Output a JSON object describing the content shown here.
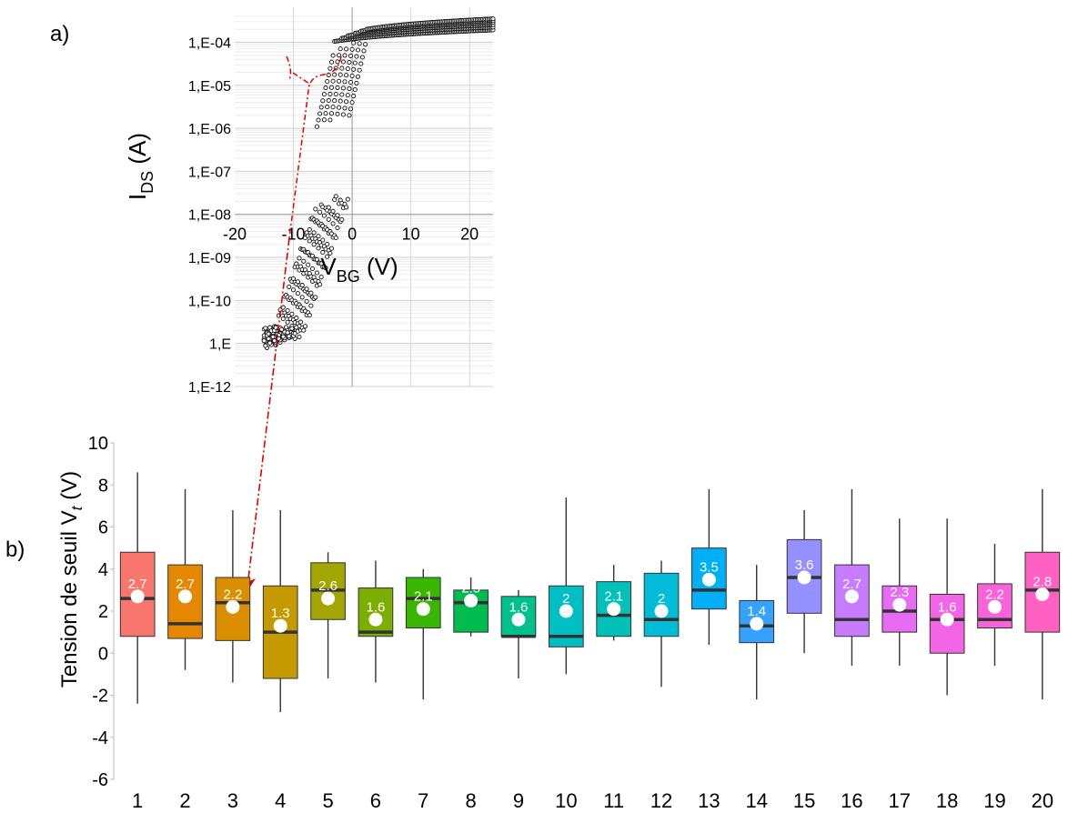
{
  "panel_labels": {
    "a": "a)",
    "b": "b)"
  },
  "chart_data": [
    {
      "type": "scatter",
      "panel": "a)",
      "ylabel_main": "I",
      "ylabel_sub": "DS",
      "ylabel_unit": " (A)",
      "xlabel_main": "V",
      "xlabel_sub": "BG",
      "xlabel_unit": " (V)",
      "xlim": [
        -20,
        24
      ],
      "x_ticks": [
        -20,
        -10,
        0,
        10,
        20
      ],
      "y_scale": "log",
      "ylim": [
        1e-12,
        0.0004
      ],
      "y_ticks": [
        "1,E-12",
        "1,E",
        "1,E-10",
        "1,E-09",
        "1,E-08",
        "1,E-07",
        "1,E-06",
        "1,E-05",
        "1,E-04"
      ],
      "grid": true,
      "transfer_curves": {
        "description_note": "",
        "off_current_range": [
          1e-11,
          2e-11
        ],
        "on_current_at_24V": 0.00035,
        "threshold_region_x": [
          -6,
          0
        ]
      }
    },
    {
      "type": "box",
      "panel": "b)",
      "ylabel": "Tension de seuil V",
      "ylabel_sub": "t",
      "ylabel_unit": " (V)",
      "ylim": [
        -6,
        10
      ],
      "y_ticks": [
        10,
        8,
        6,
        4,
        2,
        0,
        -2,
        -4,
        -6
      ],
      "categories": [
        "1",
        "2",
        "3",
        "4",
        "5",
        "6",
        "7",
        "8",
        "9",
        "10",
        "11",
        "12",
        "13",
        "14",
        "15",
        "16",
        "17",
        "18",
        "19",
        "20"
      ],
      "boxes": [
        {
          "min": -2.4,
          "q1": 0.8,
          "median": 2.6,
          "q3": 4.8,
          "max": 8.6,
          "mean": 2.7,
          "mean_label": "2.7",
          "color": "#f8766d"
        },
        {
          "min": -0.8,
          "q1": 0.7,
          "median": 1.4,
          "q3": 4.2,
          "max": 7.8,
          "mean": 2.7,
          "mean_label": "2.7",
          "color": "#e58700"
        },
        {
          "min": -1.4,
          "q1": 0.6,
          "median": 2.4,
          "q3": 3.6,
          "max": 6.8,
          "mean": 2.2,
          "mean_label": "2.2",
          "color": "#da8f00"
        },
        {
          "min": -2.8,
          "q1": -1.2,
          "median": 1.0,
          "q3": 3.2,
          "max": 6.8,
          "mean": 1.3,
          "mean_label": "1.3",
          "color": "#c49a00"
        },
        {
          "min": -1.2,
          "q1": 1.6,
          "median": 3.0,
          "q3": 4.3,
          "max": 4.8,
          "mean": 2.6,
          "mean_label": "2.6",
          "color": "#a3a500"
        },
        {
          "min": -1.4,
          "q1": 0.8,
          "median": 1.0,
          "q3": 3.1,
          "max": 4.4,
          "mean": 1.6,
          "mean_label": "1.6",
          "color": "#7cae00"
        },
        {
          "min": -2.2,
          "q1": 1.2,
          "median": 2.6,
          "q3": 3.6,
          "max": 4.0,
          "mean": 2.1,
          "mean_label": "2.1",
          "color": "#39b600"
        },
        {
          "min": 0.8,
          "q1": 1.0,
          "median": 2.4,
          "q3": 3.0,
          "max": 3.6,
          "mean": 2.5,
          "mean_label": "2.5",
          "color": "#00bb4e"
        },
        {
          "min": -1.2,
          "q1": 0.8,
          "median": 0.8,
          "q3": 2.7,
          "max": 3.0,
          "mean": 1.6,
          "mean_label": "1.6",
          "color": "#00c08b"
        },
        {
          "min": -1.0,
          "q1": 0.3,
          "median": 0.8,
          "q3": 3.2,
          "max": 7.4,
          "mean": 2.0,
          "mean_label": "2",
          "color": "#00bfc4"
        },
        {
          "min": 0.6,
          "q1": 0.8,
          "median": 1.8,
          "q3": 3.4,
          "max": 4.2,
          "mean": 2.1,
          "mean_label": "2.1",
          "color": "#00c0b8"
        },
        {
          "min": -1.6,
          "q1": 0.8,
          "median": 1.6,
          "q3": 3.8,
          "max": 4.4,
          "mean": 2.0,
          "mean_label": "2",
          "color": "#00bcd8"
        },
        {
          "min": 0.4,
          "q1": 2.1,
          "median": 3.0,
          "q3": 5.0,
          "max": 7.8,
          "mean": 3.5,
          "mean_label": "3.5",
          "color": "#00b0f6"
        },
        {
          "min": -2.2,
          "q1": 0.5,
          "median": 1.3,
          "q3": 2.5,
          "max": 4.2,
          "mean": 1.4,
          "mean_label": "1.4",
          "color": "#35a2ff"
        },
        {
          "min": 0.0,
          "q1": 1.9,
          "median": 3.6,
          "q3": 5.4,
          "max": 6.8,
          "mean": 3.6,
          "mean_label": "3.6",
          "color": "#9590ff"
        },
        {
          "min": -0.6,
          "q1": 0.8,
          "median": 1.6,
          "q3": 4.2,
          "max": 7.8,
          "mean": 2.7,
          "mean_label": "2.7",
          "color": "#c77cff"
        },
        {
          "min": -0.6,
          "q1": 1.0,
          "median": 2.0,
          "q3": 3.2,
          "max": 6.4,
          "mean": 2.3,
          "mean_label": "2.3",
          "color": "#e76bf3"
        },
        {
          "min": -2.0,
          "q1": 0.0,
          "median": 1.6,
          "q3": 2.8,
          "max": 6.4,
          "mean": 1.6,
          "mean_label": "1.6",
          "color": "#f365e6"
        },
        {
          "min": -0.6,
          "q1": 1.2,
          "median": 1.6,
          "q3": 3.3,
          "max": 5.2,
          "mean": 2.2,
          "mean_label": "2.2",
          "color": "#fa62db"
        },
        {
          "min": -2.2,
          "q1": 1.0,
          "median": 3.0,
          "q3": 4.8,
          "max": 7.8,
          "mean": 2.8,
          "mean_label": "2.8",
          "color": "#ff61c3"
        }
      ]
    }
  ],
  "colors": {
    "arrow": "#e00000",
    "median": "#333333",
    "whisker": "#333333",
    "mean_dot": "#ffffff"
  }
}
